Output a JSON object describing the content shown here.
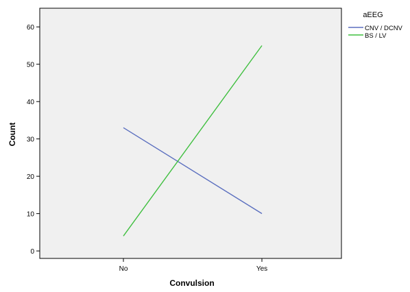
{
  "chart_data": {
    "type": "line",
    "title": "",
    "xlabel": "Convulsion",
    "ylabel": "Count",
    "categories": [
      "No",
      "Yes"
    ],
    "series": [
      {
        "name": "CNV / DCNV",
        "values": [
          33,
          10
        ],
        "color": "#5b6fbf"
      },
      {
        "name": "BS / LV",
        "values": [
          4,
          55
        ],
        "color": "#3fbf3f"
      }
    ],
    "ylim": [
      -2,
      65
    ],
    "yticks": [
      0,
      10,
      20,
      30,
      40,
      50,
      60
    ],
    "grid": false,
    "plot_background": "#f0f0f0",
    "legend": {
      "title": "aEEG",
      "placement": "top-right-outside"
    }
  }
}
